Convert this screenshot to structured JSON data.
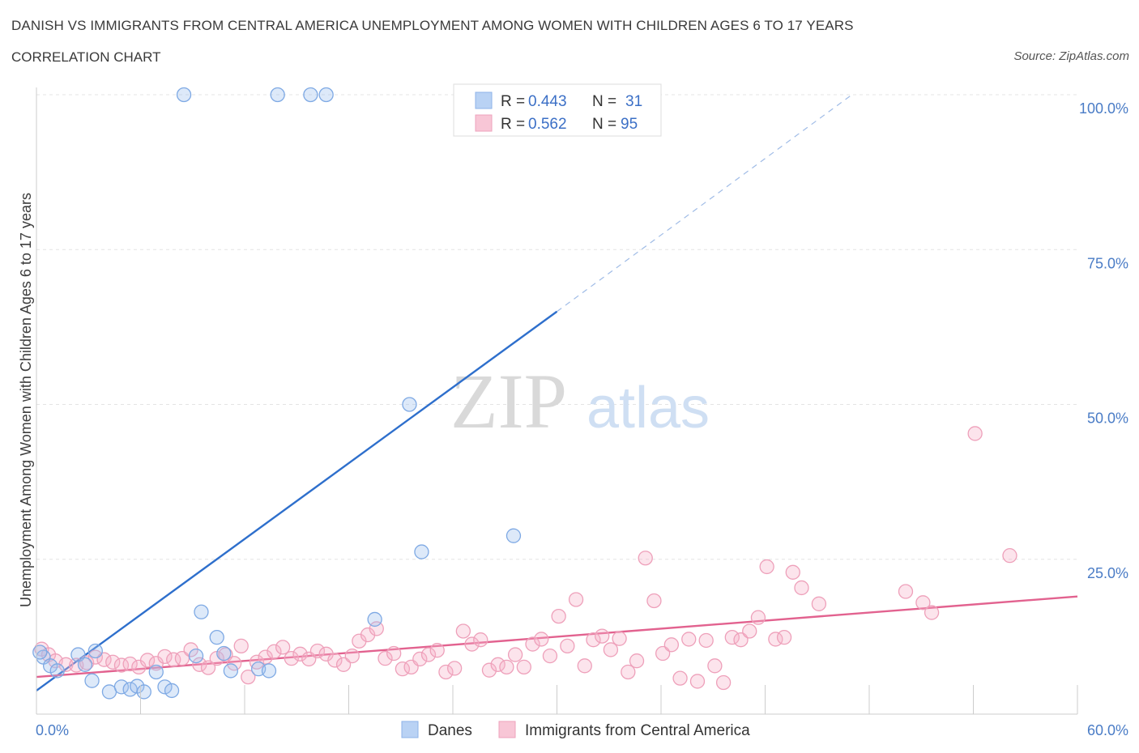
{
  "header": {
    "title": "DANISH VS IMMIGRANTS FROM CENTRAL AMERICA UNEMPLOYMENT AMONG WOMEN WITH CHILDREN AGES 6 TO 17 YEARS",
    "subtitle": "CORRELATION CHART",
    "source": "Source: ZipAtlas.com"
  },
  "watermark": {
    "zip": "ZIP",
    "atlas": "atlas"
  },
  "legend": {
    "danes": {
      "r_label": "R =",
      "r_value": "0.443",
      "n_label": "N =",
      "n_value": "31"
    },
    "immigrants": {
      "r_label": "R =",
      "r_value": "0.562",
      "n_label": "N =",
      "n_value": "95"
    }
  },
  "bottom_legend": {
    "danes": "Danes",
    "immigrants": "Immigrants from Central America"
  },
  "chart_data": {
    "type": "scatter",
    "ylabel": "Unemployment Among Women with Children Ages 6 to 17 years",
    "xlim": [
      0,
      60
    ],
    "ylim": [
      0,
      100
    ],
    "x_tick_labels": [
      "0.0%",
      "60.0%"
    ],
    "y_tick_labels": [
      "100.0%",
      "75.0%",
      "50.0%",
      "25.0%"
    ],
    "y_ticks": [
      100,
      75,
      50,
      25
    ],
    "grid": true,
    "colors": {
      "danes": "#9dbfee",
      "danes_line": "#2e6fcc",
      "immigrants": "#f5b3c8",
      "immigrants_line": "#e2628f"
    },
    "series": [
      {
        "name": "Danes",
        "trend": {
          "x0": 0,
          "y0": 3.8,
          "x1": 30,
          "y1": 65,
          "dash_to_x": 47,
          "dash_to_y": 100
        },
        "points": [
          [
            0.4,
            9.2
          ],
          [
            0.8,
            7.8
          ],
          [
            1.2,
            7.0
          ],
          [
            2.4,
            9.6
          ],
          [
            2.8,
            8.0
          ],
          [
            3.4,
            10.2
          ],
          [
            3.2,
            5.4
          ],
          [
            4.2,
            3.6
          ],
          [
            4.9,
            4.4
          ],
          [
            5.4,
            4.0
          ],
          [
            5.8,
            4.5
          ],
          [
            6.2,
            3.6
          ],
          [
            6.9,
            6.8
          ],
          [
            7.4,
            4.4
          ],
          [
            7.8,
            3.8
          ],
          [
            8.5,
            100
          ],
          [
            9.2,
            9.4
          ],
          [
            9.5,
            16.5
          ],
          [
            10.4,
            12.4
          ],
          [
            10.8,
            9.8
          ],
          [
            11.2,
            7.0
          ],
          [
            12.8,
            7.3
          ],
          [
            13.4,
            7.0
          ],
          [
            13.9,
            100
          ],
          [
            15.8,
            100
          ],
          [
            16.7,
            100
          ],
          [
            19.5,
            15.3
          ],
          [
            21.5,
            50
          ],
          [
            22.2,
            26.2
          ],
          [
            27.5,
            28.8
          ],
          [
            0.2,
            10.0
          ]
        ]
      },
      {
        "name": "Immigrants from Central America",
        "trend": {
          "x0": 0,
          "y0": 6.0,
          "x1": 60,
          "y1": 19.0
        },
        "points": [
          [
            0.3,
            10.5
          ],
          [
            0.7,
            9.6
          ],
          [
            1.1,
            8.6
          ],
          [
            1.7,
            8.0
          ],
          [
            2.3,
            7.9
          ],
          [
            2.9,
            8.3
          ],
          [
            3.4,
            9.2
          ],
          [
            3.9,
            8.8
          ],
          [
            4.4,
            8.4
          ],
          [
            4.9,
            7.9
          ],
          [
            5.4,
            8.1
          ],
          [
            5.9,
            7.6
          ],
          [
            6.4,
            8.7
          ],
          [
            6.9,
            8.2
          ],
          [
            7.4,
            9.3
          ],
          [
            7.9,
            8.8
          ],
          [
            8.4,
            9.0
          ],
          [
            8.9,
            10.4
          ],
          [
            9.4,
            8.0
          ],
          [
            9.9,
            7.5
          ],
          [
            10.4,
            9.0
          ],
          [
            10.9,
            9.6
          ],
          [
            11.4,
            8.2
          ],
          [
            11.8,
            11.0
          ],
          [
            12.2,
            6.0
          ],
          [
            12.7,
            8.4
          ],
          [
            13.2,
            9.2
          ],
          [
            13.7,
            10.1
          ],
          [
            14.2,
            10.8
          ],
          [
            14.7,
            9.0
          ],
          [
            15.2,
            9.7
          ],
          [
            15.7,
            8.9
          ],
          [
            16.2,
            10.2
          ],
          [
            16.7,
            9.7
          ],
          [
            17.2,
            8.7
          ],
          [
            17.7,
            8.0
          ],
          [
            18.2,
            9.4
          ],
          [
            18.6,
            11.8
          ],
          [
            19.1,
            12.8
          ],
          [
            19.6,
            13.8
          ],
          [
            20.1,
            9.0
          ],
          [
            20.6,
            9.8
          ],
          [
            21.1,
            7.3
          ],
          [
            21.6,
            7.6
          ],
          [
            22.1,
            8.9
          ],
          [
            22.6,
            9.6
          ],
          [
            23.1,
            10.3
          ],
          [
            23.6,
            6.8
          ],
          [
            24.1,
            7.4
          ],
          [
            24.6,
            13.4
          ],
          [
            25.1,
            11.3
          ],
          [
            25.6,
            12.0
          ],
          [
            26.1,
            7.1
          ],
          [
            26.6,
            8.0
          ],
          [
            27.1,
            7.6
          ],
          [
            27.6,
            9.6
          ],
          [
            28.1,
            7.6
          ],
          [
            28.6,
            11.3
          ],
          [
            29.1,
            12.1
          ],
          [
            29.6,
            9.4
          ],
          [
            30.1,
            15.8
          ],
          [
            30.6,
            11.0
          ],
          [
            31.1,
            18.5
          ],
          [
            31.6,
            7.8
          ],
          [
            32.1,
            12.0
          ],
          [
            32.6,
            12.6
          ],
          [
            33.1,
            10.4
          ],
          [
            33.6,
            12.2
          ],
          [
            34.1,
            6.8
          ],
          [
            34.6,
            8.6
          ],
          [
            35.1,
            25.2
          ],
          [
            35.6,
            18.3
          ],
          [
            36.1,
            9.8
          ],
          [
            36.6,
            11.2
          ],
          [
            37.1,
            5.8
          ],
          [
            37.6,
            12.1
          ],
          [
            38.1,
            5.3
          ],
          [
            38.6,
            11.9
          ],
          [
            39.1,
            7.8
          ],
          [
            39.6,
            5.1
          ],
          [
            40.1,
            12.4
          ],
          [
            40.6,
            12.0
          ],
          [
            41.1,
            13.4
          ],
          [
            41.6,
            15.6
          ],
          [
            42.1,
            23.8
          ],
          [
            42.6,
            12.1
          ],
          [
            43.1,
            12.4
          ],
          [
            43.6,
            22.9
          ],
          [
            44.1,
            20.4
          ],
          [
            45.1,
            17.8
          ],
          [
            50.1,
            19.8
          ],
          [
            51.1,
            18.0
          ],
          [
            51.6,
            16.4
          ],
          [
            54.1,
            45.3
          ],
          [
            56.1,
            25.6
          ]
        ]
      }
    ]
  }
}
